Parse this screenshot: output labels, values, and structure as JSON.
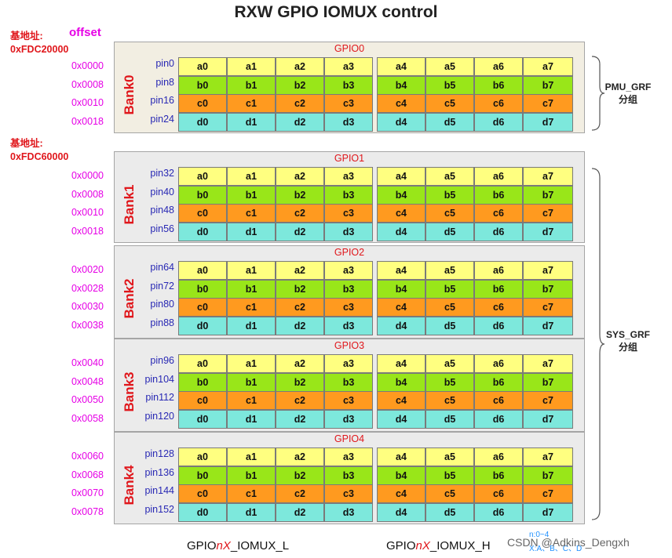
{
  "title": "RXW GPIO IOMUX control",
  "base_prefix": "基地址:",
  "base0": "0xFDC20000",
  "base1": "0xFDC60000",
  "offset_label": "offset",
  "banks": [
    {
      "bank": "Bank0",
      "gpio": "GPIO0",
      "offsets": [
        "0x0000",
        "0x0008",
        "0x0010",
        "0x0018"
      ],
      "pins": [
        "pin0",
        "pin8",
        "pin16",
        "pin24"
      ]
    },
    {
      "bank": "Bank1",
      "gpio": "GPIO1",
      "offsets": [
        "0x0000",
        "0x0008",
        "0x0010",
        "0x0018"
      ],
      "pins": [
        "pin32",
        "pin40",
        "pin48",
        "pin56"
      ]
    },
    {
      "bank": "Bank2",
      "gpio": "GPIO2",
      "offsets": [
        "0x0020",
        "0x0028",
        "0x0030",
        "0x0038"
      ],
      "pins": [
        "pin64",
        "pin72",
        "pin80",
        "pin88"
      ]
    },
    {
      "bank": "Bank3",
      "gpio": "GPIO3",
      "offsets": [
        "0x0040",
        "0x0048",
        "0x0050",
        "0x0058"
      ],
      "pins": [
        "pin96",
        "pin104",
        "pin112",
        "pin120"
      ]
    },
    {
      "bank": "Bank4",
      "gpio": "GPIO4",
      "offsets": [
        "0x0060",
        "0x0068",
        "0x0070",
        "0x0078"
      ],
      "pins": [
        "pin128",
        "pin136",
        "pin144",
        "pin152"
      ]
    }
  ],
  "rows": [
    {
      "cells": [
        "a0",
        "a1",
        "a2",
        "a3",
        "a4",
        "a5",
        "a6",
        "a7"
      ],
      "color": "#ffff80"
    },
    {
      "cells": [
        "b0",
        "b1",
        "b2",
        "b3",
        "b4",
        "b5",
        "b6",
        "b7"
      ],
      "color": "#99e619"
    },
    {
      "cells": [
        "c0",
        "c1",
        "c2",
        "c3",
        "c4",
        "c5",
        "c6",
        "c7"
      ],
      "color": "#ff9a1f"
    },
    {
      "cells": [
        "d0",
        "d1",
        "d2",
        "d3",
        "d4",
        "d5",
        "d6",
        "d7"
      ],
      "color": "#7de8dc"
    }
  ],
  "pmu_grf": {
    "line1": "PMU_GRF",
    "line2": "分组"
  },
  "sys_grf": {
    "line1": "SYS_GRF",
    "line2": "分组"
  },
  "bottom_l": {
    "pre": "GPIO",
    "em": "nX",
    "post": "_IOMUX_L"
  },
  "bottom_h": {
    "pre": "GPIO",
    "em": "nX",
    "post": "_IOMUX_H"
  },
  "note_line1": "n:0~4",
  "note_line2": "X:A、B、C、D",
  "watermark": "CSDN @Adkins_Dengxh"
}
